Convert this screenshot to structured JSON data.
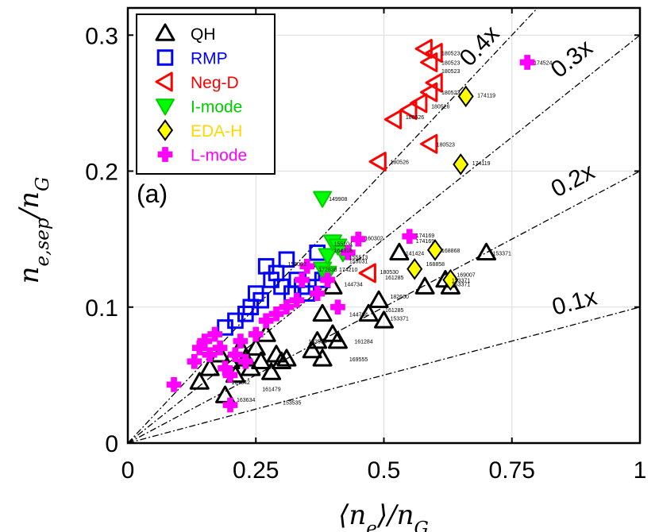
{
  "chart_data": {
    "type": "scatter",
    "panel_label": "(a)",
    "xlabel_tex": {
      "lhs": "⟨n",
      "sub": "e",
      "rhs": "⟩/n",
      "sub2": "G"
    },
    "ylabel_tex": {
      "lhs": "n",
      "sub": "e,sep",
      "rhs": "/n",
      "sub2": "G"
    },
    "xlim": [
      0,
      1
    ],
    "ylim": [
      0,
      0.32
    ],
    "x_ticks": [
      "0",
      "0.25",
      "0.5",
      "0.75",
      "1"
    ],
    "x_tick_values": [
      0,
      0.25,
      0.5,
      0.75,
      1
    ],
    "y_ticks": [
      "0",
      "0.1",
      "0.2",
      "0.3"
    ],
    "y_tick_values": [
      0,
      0.1,
      0.2,
      0.3
    ],
    "grid": true,
    "legend_position": "top-left",
    "reference_lines": [
      {
        "label": "0.4x",
        "slope": 0.4
      },
      {
        "label": "0.3x",
        "slope": 0.3
      },
      {
        "label": "0.2x",
        "slope": 0.2
      },
      {
        "label": "0.1x",
        "slope": 0.1
      }
    ],
    "series": [
      {
        "name": "QH",
        "marker": "triangle-up",
        "color": "#000000",
        "fill": "none",
        "points": [
          [
            0.14,
            0.045
          ],
          [
            0.16,
            0.055
          ],
          [
            0.18,
            0.065
          ],
          [
            0.19,
            0.035
          ],
          [
            0.2,
            0.06
          ],
          [
            0.21,
            0.05
          ],
          [
            0.22,
            0.07
          ],
          [
            0.23,
            0.062
          ],
          [
            0.24,
            0.055
          ],
          [
            0.25,
            0.07
          ],
          [
            0.26,
            0.06
          ],
          [
            0.27,
            0.08
          ],
          [
            0.28,
            0.052
          ],
          [
            0.29,
            0.065
          ],
          [
            0.3,
            0.06
          ],
          [
            0.31,
            0.062
          ],
          [
            0.36,
            0.068
          ],
          [
            0.37,
            0.075
          ],
          [
            0.38,
            0.062
          ],
          [
            0.38,
            0.095
          ],
          [
            0.4,
            0.08
          ],
          [
            0.41,
            0.075
          ],
          [
            0.4,
            0.115
          ],
          [
            0.47,
            0.095
          ],
          [
            0.49,
            0.105
          ],
          [
            0.5,
            0.09
          ],
          [
            0.53,
            0.14
          ],
          [
            0.58,
            0.115
          ],
          [
            0.62,
            0.12
          ],
          [
            0.63,
            0.115
          ],
          [
            0.7,
            0.14
          ]
        ]
      },
      {
        "name": "RMP",
        "marker": "square",
        "color": "#0000FF",
        "fill": "none",
        "points": [
          [
            0.19,
            0.085
          ],
          [
            0.21,
            0.09
          ],
          [
            0.23,
            0.095
          ],
          [
            0.24,
            0.1
          ],
          [
            0.25,
            0.11
          ],
          [
            0.26,
            0.105
          ],
          [
            0.27,
            0.13
          ],
          [
            0.28,
            0.12
          ],
          [
            0.29,
            0.125
          ],
          [
            0.3,
            0.115
          ],
          [
            0.31,
            0.135
          ],
          [
            0.32,
            0.11
          ],
          [
            0.33,
            0.12
          ],
          [
            0.34,
            0.115
          ],
          [
            0.35,
            0.11
          ],
          [
            0.36,
            0.125
          ],
          [
            0.37,
            0.14
          ],
          [
            0.38,
            0.12
          ]
        ]
      },
      {
        "name": "Neg-D",
        "marker": "triangle-left",
        "color": "#FF0000",
        "fill": "none",
        "points": [
          [
            0.47,
            0.125
          ],
          [
            0.49,
            0.207
          ],
          [
            0.52,
            0.238
          ],
          [
            0.55,
            0.245
          ],
          [
            0.57,
            0.25
          ],
          [
            0.59,
            0.22
          ],
          [
            0.59,
            0.258
          ],
          [
            0.6,
            0.265
          ],
          [
            0.59,
            0.28
          ],
          [
            0.6,
            0.287
          ],
          [
            0.58,
            0.29
          ]
        ]
      },
      {
        "name": "I-mode",
        "marker": "triangle-down",
        "color": "#00EE00",
        "fill": "#00FF00",
        "points": [
          [
            0.38,
            0.18
          ],
          [
            0.38,
            0.128
          ],
          [
            0.39,
            0.138
          ],
          [
            0.4,
            0.148
          ],
          [
            0.41,
            0.145
          ],
          [
            0.42,
            0.14
          ],
          [
            0.39,
            0.125
          ]
        ]
      },
      {
        "name": "EDA-H",
        "marker": "diamond",
        "color": "#000000",
        "fill": "#FFFF00",
        "points": [
          [
            0.56,
            0.128
          ],
          [
            0.6,
            0.142
          ],
          [
            0.63,
            0.12
          ],
          [
            0.65,
            0.205
          ],
          [
            0.66,
            0.255
          ]
        ]
      },
      {
        "name": "L-mode",
        "marker": "plus",
        "color": "#FF00FF",
        "fill": "#FF00FF",
        "points": [
          [
            0.09,
            0.043
          ],
          [
            0.13,
            0.06
          ],
          [
            0.14,
            0.07
          ],
          [
            0.15,
            0.075
          ],
          [
            0.16,
            0.065
          ],
          [
            0.17,
            0.08
          ],
          [
            0.18,
            0.07
          ],
          [
            0.19,
            0.055
          ],
          [
            0.2,
            0.05
          ],
          [
            0.2,
            0.028
          ],
          [
            0.21,
            0.065
          ],
          [
            0.22,
            0.075
          ],
          [
            0.23,
            0.06
          ],
          [
            0.25,
            0.08
          ],
          [
            0.27,
            0.09
          ],
          [
            0.29,
            0.095
          ],
          [
            0.31,
            0.1
          ],
          [
            0.33,
            0.105
          ],
          [
            0.34,
            0.12
          ],
          [
            0.35,
            0.13
          ],
          [
            0.37,
            0.11
          ],
          [
            0.39,
            0.12
          ],
          [
            0.41,
            0.1
          ],
          [
            0.43,
            0.14
          ],
          [
            0.45,
            0.15
          ],
          [
            0.55,
            0.152
          ],
          [
            0.78,
            0.28
          ]
        ]
      }
    ],
    "point_labels": [
      {
        "x": 0.6,
        "y": 0.287,
        "text": "180523"
      },
      {
        "x": 0.6,
        "y": 0.28,
        "text": "180523"
      },
      {
        "x": 0.6,
        "y": 0.274,
        "text": "180523"
      },
      {
        "x": 0.6,
        "y": 0.258,
        "text": "180523"
      },
      {
        "x": 0.58,
        "y": 0.248,
        "text": "180526"
      },
      {
        "x": 0.53,
        "y": 0.24,
        "text": "180526"
      },
      {
        "x": 0.59,
        "y": 0.22,
        "text": "180523"
      },
      {
        "x": 0.5,
        "y": 0.207,
        "text": "180526"
      },
      {
        "x": 0.78,
        "y": 0.28,
        "text": "174524"
      },
      {
        "x": 0.67,
        "y": 0.256,
        "text": "174119"
      },
      {
        "x": 0.66,
        "y": 0.206,
        "text": "174119"
      },
      {
        "x": 0.38,
        "y": 0.18,
        "text": "149908"
      },
      {
        "x": 0.45,
        "y": 0.151,
        "text": "160302"
      },
      {
        "x": 0.55,
        "y": 0.153,
        "text": "174169"
      },
      {
        "x": 0.55,
        "y": 0.149,
        "text": "174169"
      },
      {
        "x": 0.6,
        "y": 0.142,
        "text": "168868"
      },
      {
        "x": 0.57,
        "y": 0.132,
        "text": "168858"
      },
      {
        "x": 0.63,
        "y": 0.124,
        "text": "169007"
      },
      {
        "x": 0.62,
        "y": 0.117,
        "text": "153371"
      },
      {
        "x": 0.62,
        "y": 0.12,
        "text": "153371"
      },
      {
        "x": 0.7,
        "y": 0.14,
        "text": "153371"
      },
      {
        "x": 0.53,
        "y": 0.14,
        "text": "141424"
      },
      {
        "x": 0.48,
        "y": 0.126,
        "text": "180530"
      },
      {
        "x": 0.49,
        "y": 0.122,
        "text": "161285"
      },
      {
        "x": 0.5,
        "y": 0.108,
        "text": "182660"
      },
      {
        "x": 0.49,
        "y": 0.098,
        "text": "161285"
      },
      {
        "x": 0.5,
        "y": 0.092,
        "text": "153371"
      },
      {
        "x": 0.41,
        "y": 0.117,
        "text": "144734"
      },
      {
        "x": 0.42,
        "y": 0.095,
        "text": "144734"
      },
      {
        "x": 0.43,
        "y": 0.075,
        "text": "161284"
      },
      {
        "x": 0.42,
        "y": 0.062,
        "text": "169555"
      },
      {
        "x": 0.3,
        "y": 0.132,
        "text": "156092"
      },
      {
        "x": 0.29,
        "y": 0.03,
        "text": "153535"
      },
      {
        "x": 0.19,
        "y": 0.045,
        "text": "161542"
      },
      {
        "x": 0.39,
        "y": 0.147,
        "text": "155104"
      },
      {
        "x": 0.39,
        "y": 0.142,
        "text": "164318"
      },
      {
        "x": 0.42,
        "y": 0.137,
        "text": "155513"
      },
      {
        "x": 0.42,
        "y": 0.134,
        "text": "155031"
      },
      {
        "x": 0.4,
        "y": 0.128,
        "text": "174210"
      },
      {
        "x": 0.36,
        "y": 0.128,
        "text": "172838"
      },
      {
        "x": 0.34,
        "y": 0.075,
        "text": "163554"
      },
      {
        "x": 0.25,
        "y": 0.04,
        "text": "161479"
      },
      {
        "x": 0.2,
        "y": 0.032,
        "text": "163634"
      }
    ]
  }
}
